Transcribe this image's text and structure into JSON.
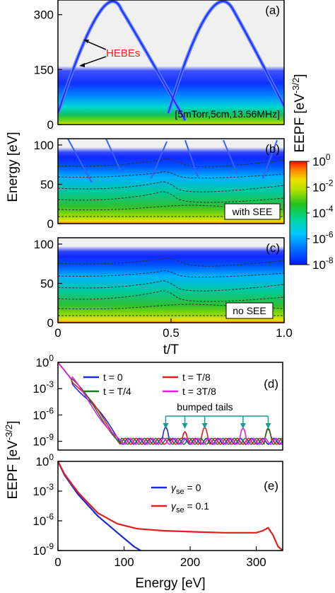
{
  "colors": {
    "blue": "#1a2bd8",
    "red": "#e21d1d",
    "green": "#1f7a1f",
    "magenta": "#e81be8",
    "teal": "#1a9a9a",
    "hebe_label": "#e8261e"
  },
  "chart_data": [
    {
      "panel": "a",
      "type": "heatmap",
      "tag": "(a)",
      "annotation": "HEBEs",
      "condition": "[5mTorr,5cm,13.56MHz]",
      "x": {
        "range": [
          0,
          1.0
        ]
      },
      "y": {
        "range": [
          0,
          340
        ],
        "ticks": [
          0,
          150,
          300
        ]
      },
      "features": {
        "hebe_peak_t": [
          0.27,
          0.77
        ],
        "hebe_peak_energy": 325,
        "bulk_energy": 150
      }
    },
    {
      "panel": "b",
      "type": "heatmap",
      "tag": "(b)",
      "label": "with SEE",
      "x": {
        "range": [
          0,
          1.0
        ]
      },
      "y": {
        "range": [
          0,
          108
        ],
        "ticks": [
          0,
          50,
          100
        ]
      }
    },
    {
      "panel": "c",
      "type": "heatmap",
      "tag": "(c)",
      "label": "no SEE",
      "x": {
        "range": [
          0,
          1.0
        ],
        "ticks": [
          "0",
          "0.5",
          "1.0"
        ]
      },
      "y": {
        "range": [
          0,
          108
        ],
        "ticks": [
          0,
          50,
          100
        ]
      }
    },
    {
      "panel": "colorbar",
      "type": "heatmap",
      "title": "EEPF [eV",
      "title_exp": "-3/2",
      "title_end": "]",
      "scale": "log",
      "ticks": [
        {
          "base": "10",
          "exp": "0",
          "value": 0
        },
        {
          "base": "10",
          "exp": "-2",
          "value": -2
        },
        {
          "base": "10",
          "exp": "-4",
          "value": -4
        },
        {
          "base": "10",
          "exp": "-6",
          "value": -6
        },
        {
          "base": "10",
          "exp": "-8",
          "value": -8
        }
      ],
      "stops": [
        "#0018ff",
        "#00a0ff",
        "#00e0c0",
        "#10c020",
        "#90e000",
        "#f0e000",
        "#ff8800",
        "#ff1000"
      ]
    },
    {
      "panel": "d",
      "type": "line",
      "tag": "(d)",
      "x": {
        "range": [
          0,
          340
        ]
      },
      "y": {
        "scale": "log",
        "range_exp": [
          -10,
          0
        ],
        "ticks": [
          {
            "base": "10",
            "exp": "0",
            "value": 0
          },
          {
            "base": "10",
            "exp": "-3",
            "value": -3
          },
          {
            "base": "10",
            "exp": "-6",
            "value": -6
          },
          {
            "base": "10",
            "exp": "-9",
            "value": -9
          }
        ]
      },
      "annotation": "bumped tails",
      "bump_energies": [
        163,
        192,
        222,
        280,
        318
      ],
      "series": [
        {
          "name": "t = 0",
          "color": "#1a2bd8",
          "bumps": [
            [
              163,
              -7.4
            ]
          ]
        },
        {
          "name": "t = T/8",
          "color": "#e21d1d",
          "bumps": [
            [
              192,
              -7.9
            ],
            [
              222,
              -7.4
            ],
            [
              318,
              -7.6
            ]
          ]
        },
        {
          "name": "t = T/4",
          "color": "#1f7a1f",
          "bumps": [
            [
              318,
              -7.5
            ]
          ]
        },
        {
          "name": "t = 3T/8",
          "color": "#e81be8",
          "bumps": [
            [
              280,
              -7.5
            ]
          ]
        }
      ]
    },
    {
      "panel": "e",
      "type": "line",
      "tag": "(e)",
      "x": {
        "range": [
          0,
          340
        ],
        "ticks": [
          "0",
          "100",
          "200",
          "300"
        ]
      },
      "y": {
        "scale": "log",
        "range_exp": [
          -9,
          0
        ],
        "ticks": [
          {
            "base": "10",
            "exp": "0",
            "value": 0
          },
          {
            "base": "10",
            "exp": "-3",
            "value": -3
          },
          {
            "base": "10",
            "exp": "-6",
            "value": -6
          },
          {
            "base": "10",
            "exp": "-9",
            "value": -9
          }
        ]
      },
      "series": [
        {
          "name_sym": "γ",
          "name_sub": "se",
          "name_val": " = 0",
          "color": "#1a2bd8",
          "points": [
            [
              0,
              0.0
            ],
            [
              10,
              -1.4
            ],
            [
              30,
              -3.3
            ],
            [
              60,
              -5.5
            ],
            [
              90,
              -7.2
            ],
            [
              115,
              -8.6
            ],
            [
              125,
              -9.0
            ]
          ]
        },
        {
          "name_sym": "γ",
          "name_sub": "se",
          "name_val": " = 0.1",
          "color": "#e21d1d",
          "points": [
            [
              0,
              0.0
            ],
            [
              10,
              -1.3
            ],
            [
              30,
              -3.1
            ],
            [
              60,
              -5.2
            ],
            [
              90,
              -6.3
            ],
            [
              120,
              -6.8
            ],
            [
              160,
              -7.0
            ],
            [
              200,
              -7.1
            ],
            [
              250,
              -7.2
            ],
            [
              300,
              -7.2
            ],
            [
              310,
              -7.0
            ],
            [
              318,
              -6.7
            ],
            [
              325,
              -7.4
            ],
            [
              333,
              -8.6
            ],
            [
              340,
              -9.0
            ]
          ]
        }
      ]
    }
  ],
  "labels": {
    "energy_axis_top": "Energy [eV]",
    "t_axis": "t/T",
    "eepf_axis_bottom": "EEPF [eV",
    "eepf_axis_bottom_exp": "-3/2",
    "eepf_axis_bottom_end": "]",
    "energy_axis_bottom": "Energy [eV]"
  }
}
